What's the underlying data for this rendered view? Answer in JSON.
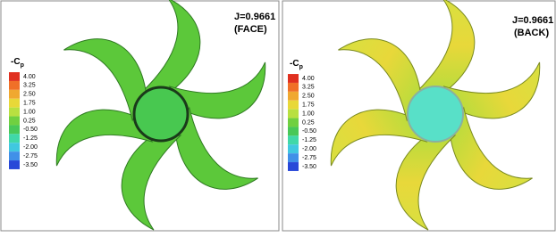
{
  "panels": [
    {
      "j_label": "J=0.9661",
      "side_label": "(FACE)",
      "colorbar": {
        "title": "-C",
        "subscript": "p",
        "levels": [
          "4.00",
          "3.25",
          "2.50",
          "1.75",
          "1.00",
          "0.25",
          "-0.50",
          "-1.25",
          "-2.00",
          "-2.75",
          "-3.50"
        ]
      }
    },
    {
      "j_label": "J=0.9661",
      "side_label": "(BACK)",
      "colorbar": {
        "title": "-C",
        "subscript": "p",
        "levels": [
          "4.00",
          "3.25",
          "2.50",
          "1.75",
          "1.00",
          "0.25",
          "-0.50",
          "-1.25",
          "-2.00",
          "-2.75",
          "-3.50"
        ]
      }
    }
  ]
}
